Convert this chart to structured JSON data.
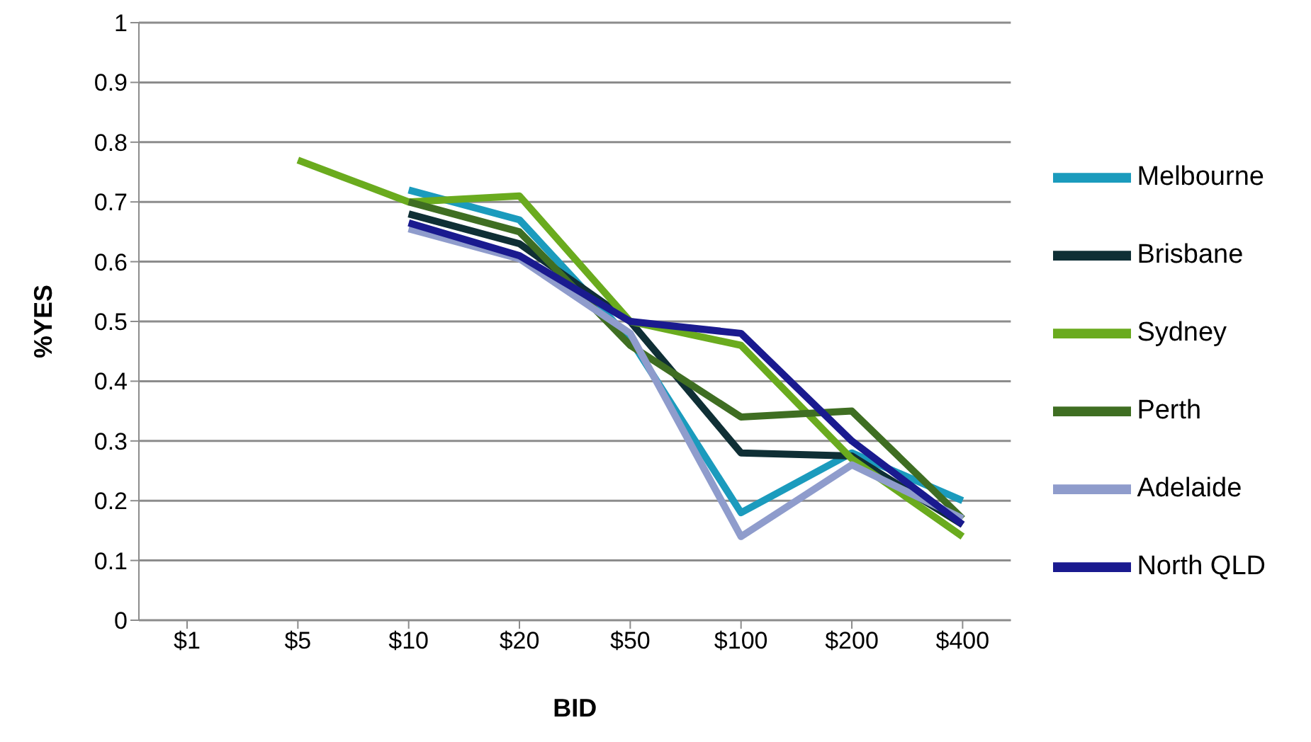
{
  "chart_data": {
    "type": "line",
    "xlabel": "BID",
    "ylabel": "%YES",
    "categories": [
      "$1",
      "$5",
      "$10",
      "$20",
      "$50",
      "$100",
      "$200",
      "$400"
    ],
    "series": [
      {
        "name": "Melbourne",
        "color": "#1b9bbd",
        "values": [
          null,
          null,
          0.72,
          0.67,
          0.47,
          0.18,
          0.28,
          0.2
        ]
      },
      {
        "name": "Brisbane",
        "color": "#0f2f35",
        "values": [
          null,
          null,
          0.68,
          0.63,
          0.5,
          0.28,
          0.275,
          0.16
        ]
      },
      {
        "name": "Sydney",
        "color": "#6aab1e",
        "values": [
          null,
          0.77,
          0.7,
          0.71,
          0.5,
          0.46,
          0.27,
          0.14
        ]
      },
      {
        "name": "Perth",
        "color": "#3f6e22",
        "values": [
          null,
          null,
          0.7,
          0.65,
          0.46,
          0.34,
          0.35,
          0.17
        ]
      },
      {
        "name": "Adelaide",
        "color": "#8f9ccc",
        "values": [
          null,
          null,
          0.655,
          0.605,
          0.48,
          0.14,
          0.26,
          0.17
        ]
      },
      {
        "name": "North QLD",
        "color": "#1a1a8f",
        "values": [
          null,
          null,
          0.665,
          0.61,
          0.5,
          0.48,
          0.3,
          0.16
        ]
      }
    ],
    "ylim": [
      0,
      1
    ],
    "yticks": [
      0,
      0.1,
      0.2,
      0.3,
      0.4,
      0.5,
      0.6,
      0.7,
      0.8,
      0.9,
      1
    ],
    "grid": "y",
    "legend": "right",
    "marker": "none",
    "line_style": "solid"
  }
}
